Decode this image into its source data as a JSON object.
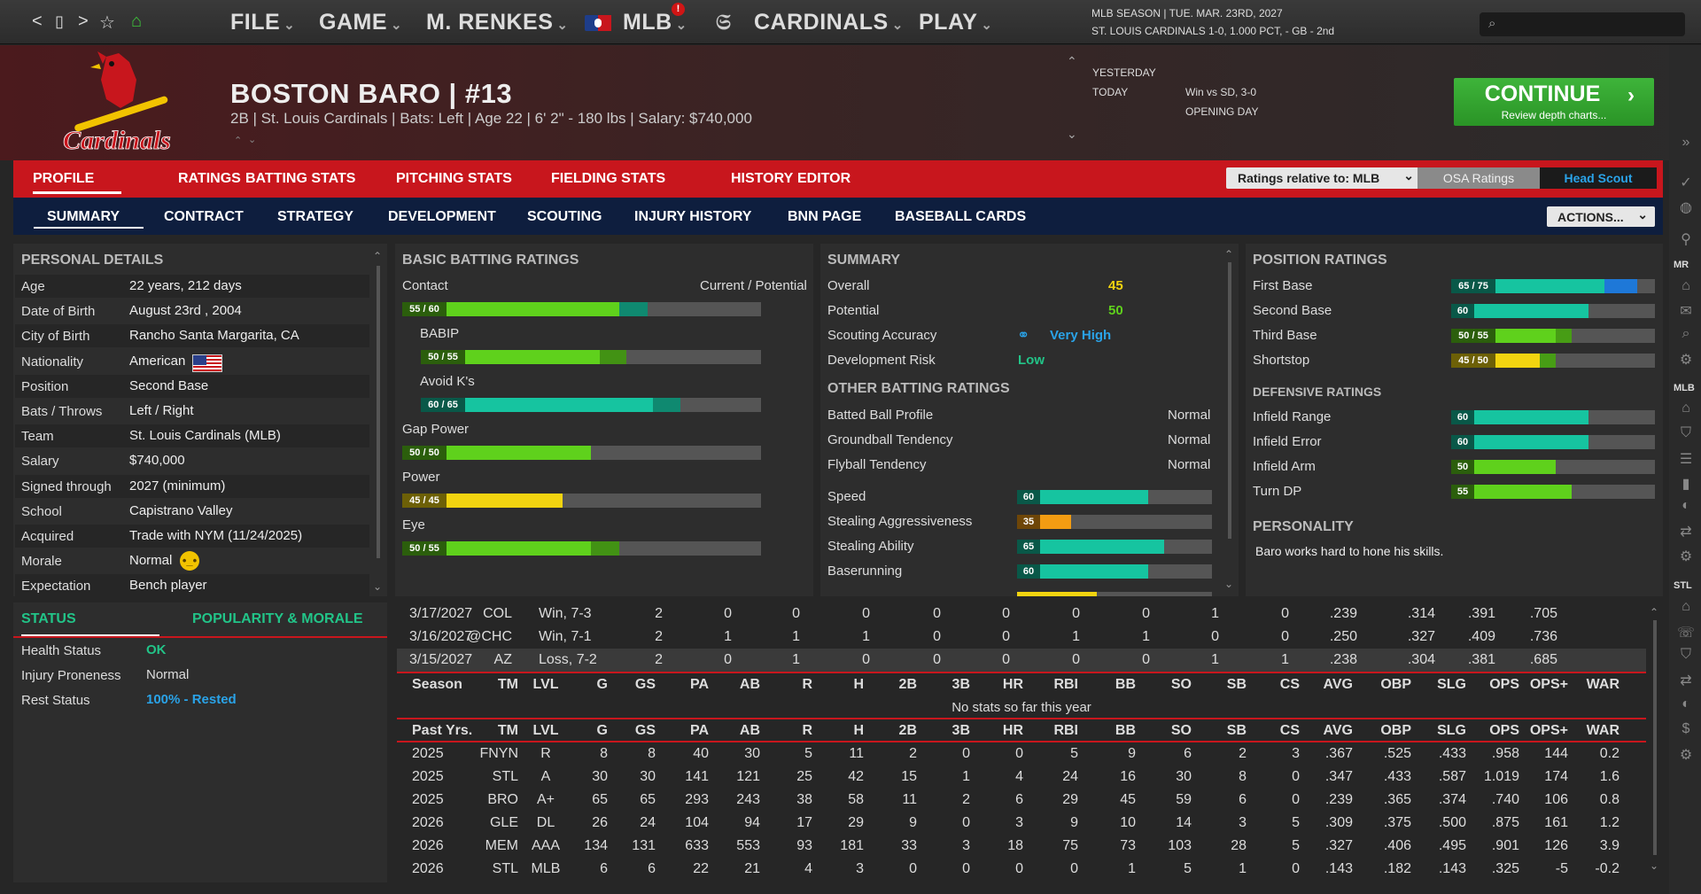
{
  "nav": {
    "back": "<",
    "doc": "▯",
    "forward": ">",
    "star": "☆",
    "home": "⌂"
  },
  "menus": [
    "FILE",
    "GAME",
    "M. RENKES",
    "MLB",
    "CARDINALS",
    "PLAY"
  ],
  "alert": "!",
  "season": {
    "line1": "MLB SEASON  |  TUE. MAR. 23RD, 2027",
    "line2": "ST. LOUIS CARDINALS  1-0, 1.000 PCT, - GB - 2nd"
  },
  "team_logo": "Cardinals",
  "player": {
    "name": "BOSTON BARO  |  #13",
    "line": "2B | St. Louis Cardinals  |  Bats: Left  |  Age 22  |  6' 2\"  - 180 lbs  |  Salary: $740,000"
  },
  "schedule": {
    "yesterday_label": "YESTERDAY",
    "today_label": "TODAY",
    "today_result": "Win vs SD, 3-0",
    "today_event": "OPENING DAY"
  },
  "continue": {
    "label": "CONTINUE",
    "sub": "Review depth charts..."
  },
  "tabs1": [
    "PROFILE",
    "RATINGS",
    "BATTING STATS",
    "PITCHING STATS",
    "FIELDING STATS",
    "HISTORY",
    "EDITOR"
  ],
  "ratings_relative": "Ratings relative to: MLB",
  "osa": "OSA Ratings",
  "head_scout": "Head Scout",
  "tabs2": [
    "SUMMARY",
    "CONTRACT",
    "STRATEGY",
    "DEVELOPMENT",
    "SCOUTING",
    "INJURY HISTORY",
    "BNN PAGE",
    "BASEBALL CARDS"
  ],
  "actions": "ACTIONS...",
  "personal": {
    "title": "PERSONAL DETAILS",
    "rows": [
      {
        "k": "Age",
        "v": "22 years, 212 days"
      },
      {
        "k": "Date of Birth",
        "v": "August 23rd , 2004"
      },
      {
        "k": "City of Birth",
        "v": "Rancho Santa Margarita, CA"
      },
      {
        "k": "Nationality",
        "v": "American"
      },
      {
        "k": "Position",
        "v": "Second Base"
      },
      {
        "k": "Bats / Throws",
        "v": "Left / Right"
      },
      {
        "k": "Team",
        "v": "St. Louis Cardinals (MLB)"
      },
      {
        "k": "Salary",
        "v": "$740,000"
      },
      {
        "k": "Signed through",
        "v": "2027 (minimum)"
      },
      {
        "k": "School",
        "v": "Capistrano Valley"
      },
      {
        "k": "Acquired",
        "v": "Trade with NYM (11/24/2025)"
      },
      {
        "k": "Morale",
        "v": "Normal"
      },
      {
        "k": "Expectation",
        "v": "Bench player"
      }
    ]
  },
  "status": {
    "tab1": "STATUS",
    "tab2": "POPULARITY & MORALE",
    "rows": [
      {
        "k": "Health Status",
        "v": "OK",
        "c": "#22c488"
      },
      {
        "k": "Injury Proneness",
        "v": "Normal",
        "c": "#ddd"
      },
      {
        "k": "Rest Status",
        "v": "100% - Rested",
        "c": "#2aa3e8"
      }
    ]
  },
  "batting": {
    "title": "BASIC BATTING RATINGS",
    "cp": "Current / Potential",
    "items": [
      {
        "name": "Contact",
        "label": "55 / 60",
        "cur": 55,
        "pot": 60,
        "indent": false
      },
      {
        "name": "BABIP",
        "label": "50 / 55",
        "cur": 50,
        "pot": 55,
        "indent": true
      },
      {
        "name": "Avoid K's",
        "label": "60 / 65",
        "cur": 60,
        "pot": 65,
        "indent": true
      },
      {
        "name": "Gap Power",
        "label": "50 / 50",
        "cur": 50,
        "pot": 50,
        "indent": false
      },
      {
        "name": "Power",
        "label": "45 / 45",
        "cur": 45,
        "pot": 45,
        "indent": false
      },
      {
        "name": "Eye",
        "label": "50 / 55",
        "cur": 50,
        "pot": 55,
        "indent": false
      }
    ]
  },
  "summary": {
    "title": "SUMMARY",
    "overall_k": "Overall",
    "overall_v": "45",
    "potential_k": "Potential",
    "potential_v": "50",
    "accuracy_k": "Scouting Accuracy",
    "accuracy_v": "Very High",
    "risk_k": "Development Risk",
    "risk_v": "Low",
    "other_title": "OTHER BATTING RATINGS",
    "other": [
      {
        "k": "Batted Ball Profile",
        "v": "Normal"
      },
      {
        "k": "Groundball Tendency",
        "v": "Normal"
      },
      {
        "k": "Flyball Tendency",
        "v": "Normal"
      }
    ],
    "running": [
      {
        "k": "Speed",
        "v": 60
      },
      {
        "k": "Stealing Aggressiveness",
        "v": 35
      },
      {
        "k": "Stealing Ability",
        "v": 65
      },
      {
        "k": "Baserunning",
        "v": 60
      }
    ]
  },
  "position": {
    "title": "POSITION RATINGS",
    "items": [
      {
        "k": "First Base",
        "label": "65 / 75",
        "cur": 65,
        "pot": 75
      },
      {
        "k": "Second Base",
        "label": "60",
        "cur": 60,
        "pot": 60
      },
      {
        "k": "Third Base",
        "label": "50 / 55",
        "cur": 50,
        "pot": 55
      },
      {
        "k": "Shortstop",
        "label": "45 / 50",
        "cur": 45,
        "pot": 50
      }
    ],
    "def_title": "DEFENSIVE RATINGS",
    "def": [
      {
        "k": "Infield Range",
        "v": 60
      },
      {
        "k": "Infield Error",
        "v": 60
      },
      {
        "k": "Infield Arm",
        "v": 50
      },
      {
        "k": "Turn DP",
        "v": 55
      }
    ],
    "pers_title": "PERSONALITY",
    "pers_text": "Baro works hard to hone his skills."
  },
  "colors": {
    "green": "#5fd11c",
    "teal": "#16c4a0",
    "yellow": "#f2d410",
    "orange": "#f39c12",
    "blue": "#1e78d8",
    "red": "#c8161d"
  },
  "recent_games": [
    [
      "3/17/2027",
      "COL",
      "Win, 7-3",
      "2",
      "0",
      "0",
      "0",
      "0",
      "0",
      "0",
      "0",
      "1",
      "0",
      ".239",
      ".314",
      ".391",
      ".705"
    ],
    [
      "3/16/2027",
      "@CHC",
      "Win, 7-1",
      "2",
      "1",
      "1",
      "1",
      "0",
      "0",
      "1",
      "1",
      "0",
      "0",
      ".250",
      ".327",
      ".409",
      ".736"
    ],
    [
      "3/15/2027",
      "AZ",
      "Loss, 7-2",
      "2",
      "0",
      "1",
      "0",
      "0",
      "0",
      "0",
      "0",
      "1",
      "1",
      ".238",
      ".304",
      ".381",
      ".685"
    ]
  ],
  "season_header": [
    "Season",
    "TM",
    "LVL",
    "G",
    "GS",
    "PA",
    "AB",
    "R",
    "H",
    "2B",
    "3B",
    "HR",
    "RBI",
    "BB",
    "SO",
    "SB",
    "CS",
    "AVG",
    "OBP",
    "SLG",
    "OPS",
    "OPS+",
    "WAR"
  ],
  "no_stats": "No stats so far this year",
  "past_header": [
    "Past Yrs.",
    "TM",
    "LVL",
    "G",
    "GS",
    "PA",
    "AB",
    "R",
    "H",
    "2B",
    "3B",
    "HR",
    "RBI",
    "BB",
    "SO",
    "SB",
    "CS",
    "AVG",
    "OBP",
    "SLG",
    "OPS",
    "OPS+",
    "WAR"
  ],
  "past": [
    [
      "2025",
      "FNYN",
      "R",
      "8",
      "8",
      "40",
      "30",
      "5",
      "11",
      "2",
      "0",
      "0",
      "5",
      "9",
      "6",
      "2",
      "3",
      ".367",
      ".525",
      ".433",
      ".958",
      "144",
      "0.2"
    ],
    [
      "2025",
      "STL",
      "A",
      "30",
      "30",
      "141",
      "121",
      "25",
      "42",
      "15",
      "1",
      "4",
      "24",
      "16",
      "30",
      "8",
      "0",
      ".347",
      ".433",
      ".587",
      "1.019",
      "174",
      "1.6"
    ],
    [
      "2025",
      "BRO",
      "A+",
      "65",
      "65",
      "293",
      "243",
      "38",
      "58",
      "11",
      "2",
      "6",
      "29",
      "45",
      "59",
      "6",
      "0",
      ".239",
      ".365",
      ".374",
      ".740",
      "106",
      "0.8"
    ],
    [
      "2026",
      "GLE",
      "DL",
      "26",
      "24",
      "104",
      "94",
      "17",
      "29",
      "9",
      "0",
      "3",
      "9",
      "10",
      "14",
      "3",
      "5",
      ".309",
      ".375",
      ".500",
      ".875",
      "161",
      "1.2"
    ],
    [
      "2026",
      "MEM",
      "AAA",
      "134",
      "131",
      "633",
      "553",
      "93",
      "181",
      "33",
      "3",
      "18",
      "75",
      "73",
      "103",
      "28",
      "5",
      ".327",
      ".406",
      ".495",
      ".901",
      "126",
      "3.9"
    ],
    [
      "2026",
      "STL",
      "MLB",
      "6",
      "6",
      "22",
      "21",
      "4",
      "3",
      "0",
      "0",
      "0",
      "0",
      "1",
      "5",
      "1",
      "0",
      ".143",
      ".182",
      ".143",
      ".325",
      "-5",
      "-0.2"
    ]
  ],
  "sidebar": {
    "mr": "MR",
    "mlb": "MLB",
    "stl": "STL"
  }
}
